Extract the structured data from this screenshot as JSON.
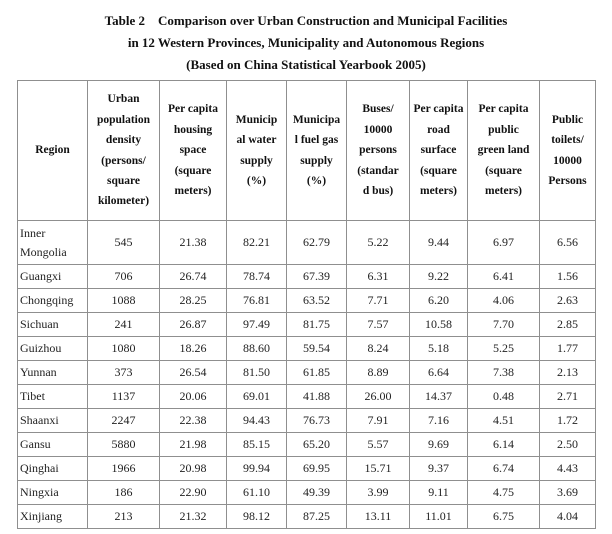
{
  "title": {
    "line1": "Table 2    Comparison over Urban Construction and Municipal Facilities",
    "line2": "in 12 Western Provinces, Municipality and Autonomous Regions",
    "line3": "(Based on China Statistical Yearbook 2005)"
  },
  "table": {
    "headers": [
      "Region",
      "Urban\npopulation\ndensity\n(persons/\nsquare\nkilometer)",
      "Per capita\nhousing\nspace\n(square\nmeters)",
      "Municip\nal water\nsupply\n(%)",
      "Municipa\nl fuel gas\nsupply\n(%)",
      "Buses/\n10000\npersons\n(standar\nd bus)",
      "Per capita\nroad\nsurface\n(square\nmeters)",
      "Per capita\npublic\ngreen land\n(square\nmeters)",
      "Public\ntoilets/\n10000\nPersons"
    ],
    "rows": [
      [
        "Inner\nMongolia",
        "545",
        "21.38",
        "82.21",
        "62.79",
        "5.22",
        "9.44",
        "6.97",
        "6.56"
      ],
      [
        "Guangxi",
        "706",
        "26.74",
        "78.74",
        "67.39",
        "6.31",
        "9.22",
        "6.41",
        "1.56"
      ],
      [
        "Chongqing",
        "1088",
        "28.25",
        "76.81",
        "63.52",
        "7.71",
        "6.20",
        "4.06",
        "2.63"
      ],
      [
        "Sichuan",
        "241",
        "26.87",
        "97.49",
        "81.75",
        "7.57",
        "10.58",
        "7.70",
        "2.85"
      ],
      [
        "Guizhou",
        "1080",
        "18.26",
        "88.60",
        "59.54",
        "8.24",
        "5.18",
        "5.25",
        "1.77"
      ],
      [
        "Yunnan",
        "373",
        "26.54",
        "81.50",
        "61.85",
        "8.89",
        "6.64",
        "7.38",
        "2.13"
      ],
      [
        "Tibet",
        "1137",
        "20.06",
        "69.01",
        "41.88",
        "26.00",
        "14.37",
        "0.48",
        "2.71"
      ],
      [
        "Shaanxi",
        "2247",
        "22.38",
        "94.43",
        "76.73",
        "7.91",
        "7.16",
        "4.51",
        "1.72"
      ],
      [
        "Gansu",
        "5880",
        "21.98",
        "85.15",
        "65.20",
        "5.57",
        "9.69",
        "6.14",
        "2.50"
      ],
      [
        "Qinghai",
        "1966",
        "20.98",
        "99.94",
        "69.95",
        "15.71",
        "9.37",
        "6.74",
        "4.43"
      ],
      [
        "Ningxia",
        "186",
        "22.90",
        "61.10",
        "49.39",
        "3.99",
        "9.11",
        "4.75",
        "3.69"
      ],
      [
        "Xinjiang",
        "213",
        "21.32",
        "98.12",
        "87.25",
        "13.11",
        "11.01",
        "6.75",
        "4.04"
      ]
    ]
  }
}
